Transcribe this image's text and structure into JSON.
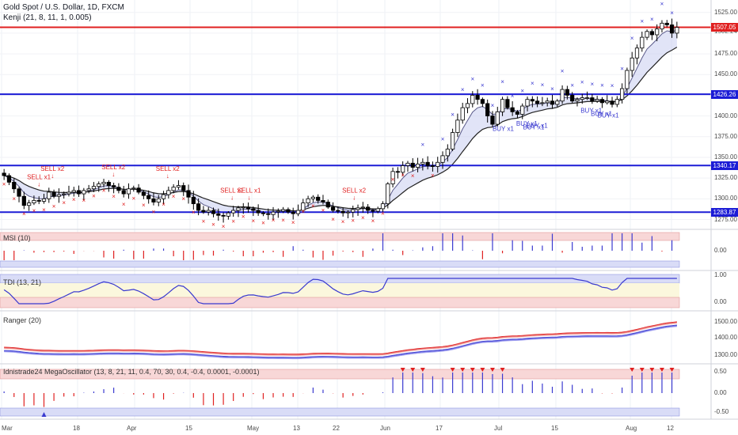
{
  "header": {
    "title": "Gold Spot / U.S. Dollar, 1D, FXCM",
    "indicator": "Kenji (21, 8, 11, 1, 0.005)"
  },
  "price_tags": [
    {
      "label": "1507.05",
      "value": 1507.05,
      "color": "#e02020"
    },
    {
      "label": "1426.26",
      "value": 1426.26,
      "color": "#1c1cd6"
    },
    {
      "label": "1340.17",
      "value": 1340.17,
      "color": "#1c1cd6"
    },
    {
      "label": "1283.87",
      "value": 1283.87,
      "color": "#1c1cd6"
    }
  ],
  "main_axis_labels": [
    "1525.00",
    "1502.24",
    "1475.00",
    "1450.00",
    "1400.00",
    "1375.00",
    "1350.00",
    "1325.00",
    "1300.00",
    "1275.00"
  ],
  "panes": {
    "msi": {
      "label": "MSI (10)",
      "ticks": [
        "0.00"
      ]
    },
    "tdi": {
      "label": "TDI (13, 21)",
      "ticks": [
        "1.00",
        "0.00"
      ]
    },
    "ranger": {
      "label": "Ranger (20)",
      "ticks": [
        "1500.00",
        "1400.00",
        "1300.00"
      ]
    },
    "mega": {
      "label": "Idnistrade24 MegaOscillator (13, 8, 21, 11, 0.4, 70, 30, 0.4, -0.4, 0.0001, -0.0001)",
      "ticks": [
        "0.50",
        "0.00",
        "-0.50"
      ]
    }
  },
  "x_axis": [
    "Mar",
    "18",
    "Apr",
    "15",
    "May",
    "13",
    "22",
    "Jun",
    "17",
    "Jul",
    "15",
    "Aug",
    "12"
  ],
  "signals": {
    "sell": [
      "SELL x1",
      "SELL x2",
      "SELL x2",
      "SELL x2",
      "SELL x1",
      "SELL x1",
      "SELL x2"
    ],
    "buy": [
      "BUY x1",
      "BUY x1",
      "BUY x1",
      "BUY x1",
      "BUY x1",
      "BUY x1",
      "BUY x1"
    ]
  },
  "colors": {
    "resistance": "#e02020",
    "support": "#1c1cd6",
    "bull": "#ffffff",
    "bear": "#000000",
    "sell": "#e02020",
    "buy": "#3a3ad0",
    "band_fill": "#c9cdf0"
  },
  "chart_data": {
    "type": "candlestick",
    "title": "Gold Spot / U.S. Dollar, 1D, FXCM",
    "x_ticks": [
      "Mar",
      "18",
      "Apr",
      "15",
      "May",
      "13",
      "22",
      "Jun",
      "17",
      "Jul",
      "15",
      "Aug",
      "12"
    ],
    "ylim": [
      1265,
      1540
    ],
    "horizontal_levels": [
      1507.05,
      1426.26,
      1340.17,
      1283.87
    ],
    "close": [
      1328,
      1320,
      1312,
      1303,
      1292,
      1295,
      1298,
      1297,
      1300,
      1308,
      1303,
      1305,
      1306,
      1308,
      1310,
      1306,
      1310,
      1312,
      1315,
      1318,
      1320,
      1316,
      1314,
      1310,
      1306,
      1312,
      1313,
      1308,
      1304,
      1300,
      1296,
      1300,
      1305,
      1310,
      1314,
      1316,
      1310,
      1302,
      1294,
      1286,
      1284,
      1286,
      1282,
      1280,
      1279,
      1283,
      1286,
      1289,
      1290,
      1288,
      1286,
      1283,
      1282,
      1281,
      1284,
      1285,
      1287,
      1284,
      1282,
      1286,
      1295,
      1300,
      1302,
      1298,
      1296,
      1290,
      1286,
      1285,
      1283,
      1284,
      1287,
      1289,
      1290,
      1286,
      1285,
      1288,
      1294,
      1318,
      1333,
      1332,
      1340,
      1343,
      1338,
      1342,
      1344,
      1340,
      1339,
      1344,
      1352,
      1360,
      1380,
      1395,
      1410,
      1415,
      1425,
      1420,
      1415,
      1400,
      1390,
      1405,
      1420,
      1410,
      1405,
      1402,
      1412,
      1420,
      1418,
      1415,
      1416,
      1418,
      1414,
      1418,
      1432,
      1425,
      1418,
      1420,
      1422,
      1422,
      1418,
      1420,
      1416,
      1418,
      1414,
      1420,
      1433,
      1455,
      1470,
      1482,
      1495,
      1502,
      1498,
      1505,
      1512,
      1510,
      1500,
      1507
    ]
  }
}
